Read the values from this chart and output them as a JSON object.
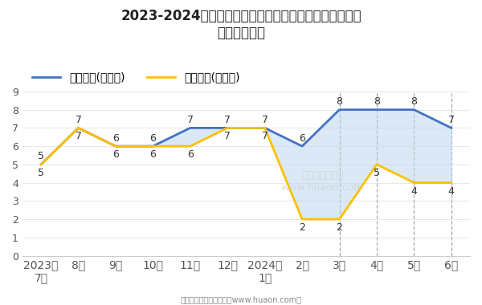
{
  "x_labels": [
    "2023年\n7月",
    "8月",
    "9月",
    "10月",
    "11月",
    "12月",
    "2024年\n1月",
    "2月",
    "3月",
    "4月",
    "5月",
    "6月"
  ],
  "export_values": [
    5,
    7,
    6,
    6,
    7,
    7,
    7,
    6,
    8,
    8,
    8,
    7
  ],
  "import_values": [
    5,
    7,
    6,
    6,
    6,
    7,
    7,
    2,
    2,
    5,
    4,
    4
  ],
  "export_label": "出口总额(亿美元)",
  "import_label": "进口总额(亿美元)",
  "export_color": "#4472C4",
  "import_color": "#FFC000",
  "fill_color": "#BDD7EE",
  "fill_alpha": 0.55,
  "title_line1": "2023-2024年济南高新技术产业开发区商品收发货人所在",
  "title_line2": "地进、出口额",
  "ylim": [
    0,
    9
  ],
  "yticks": [
    0,
    1,
    2,
    3,
    4,
    5,
    6,
    7,
    8,
    9
  ],
  "dashed_indices": [
    8,
    9,
    10,
    11
  ],
  "footer_text": "制图：华经产业研究院（www.huaon.com）",
  "watermark_line1": "华经产业研究院",
  "watermark_line2": "www.huaon.com",
  "background_color": "#ffffff"
}
